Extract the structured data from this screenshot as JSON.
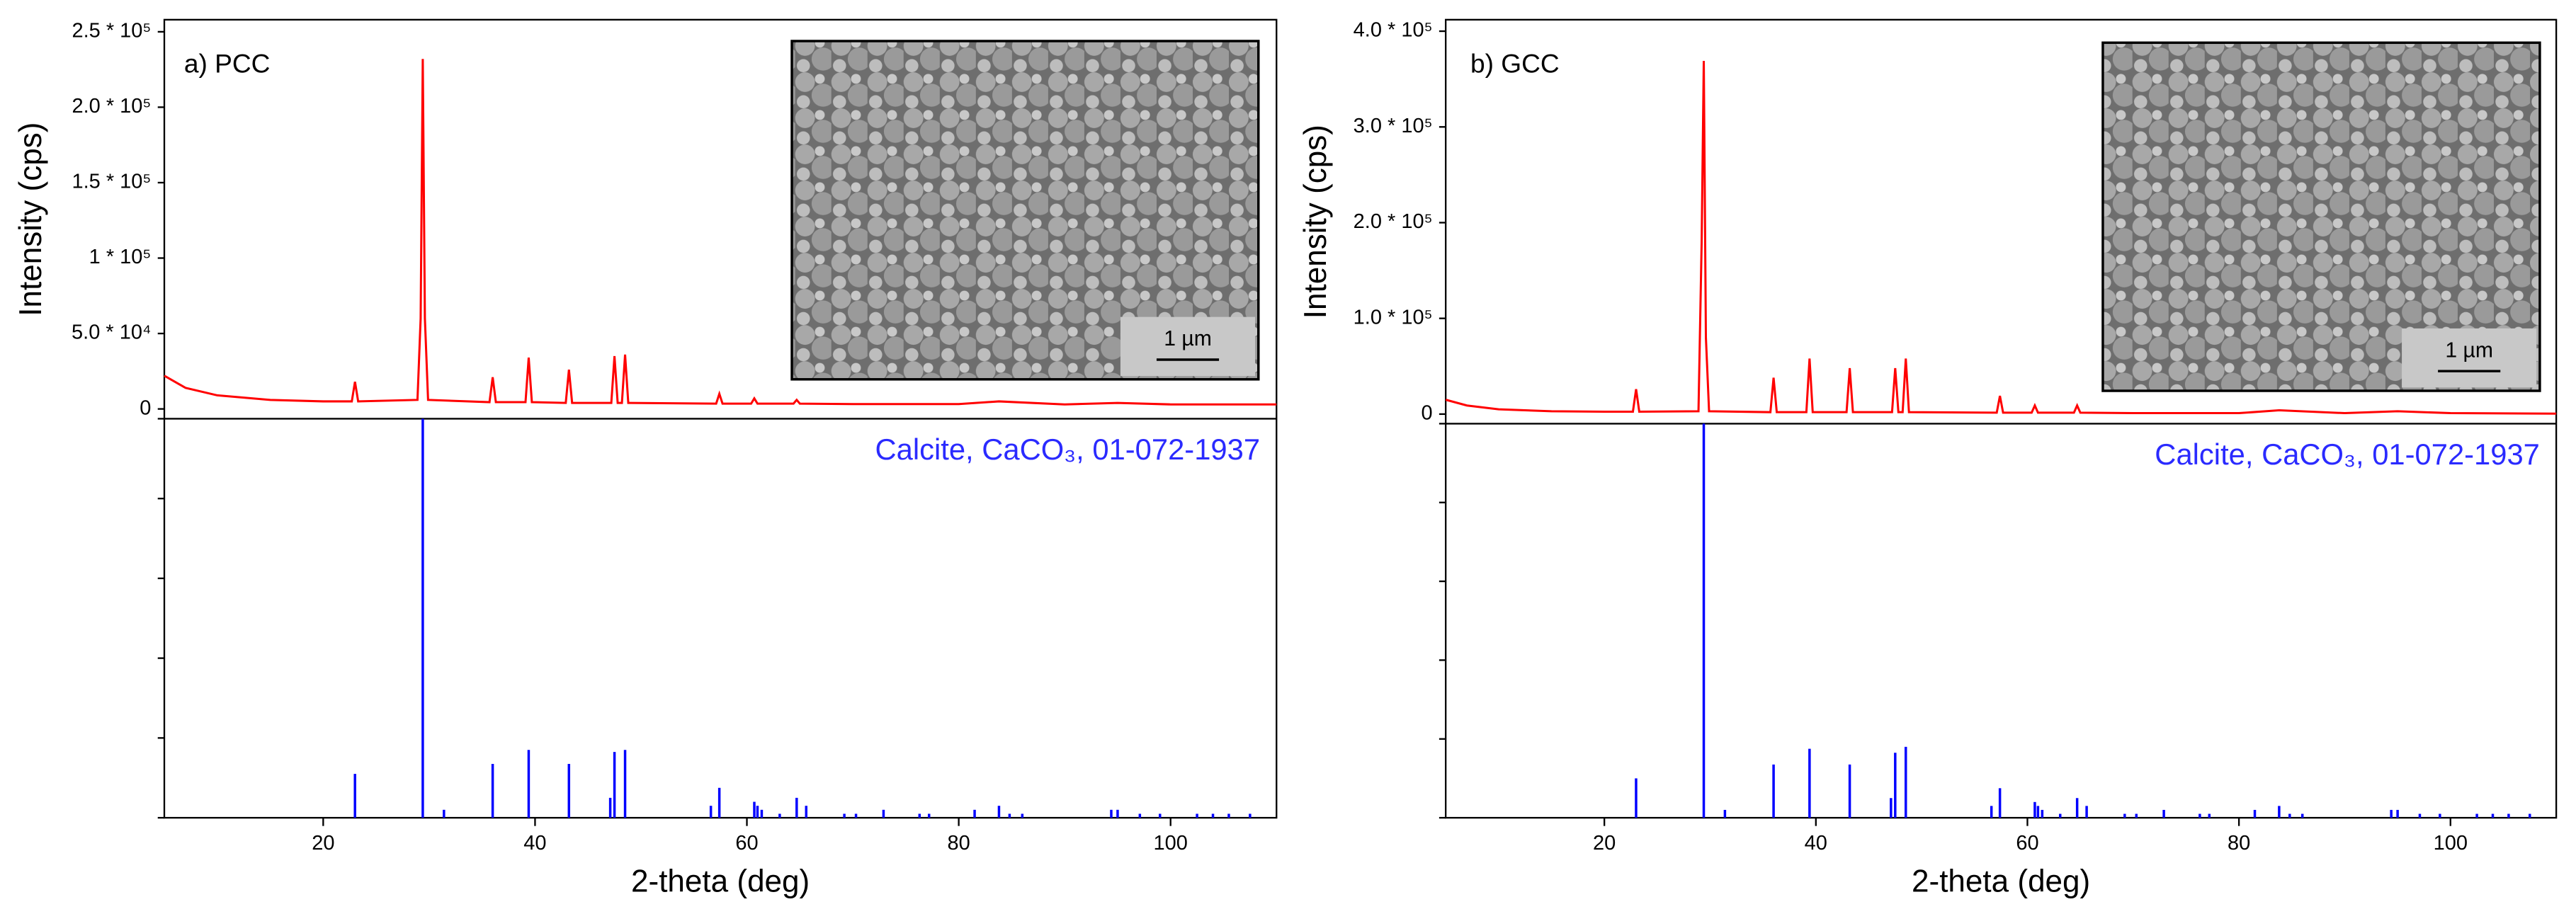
{
  "chart_data": [
    {
      "type": "xrd",
      "title": "a) PCC",
      "x_label": "2-theta (deg)",
      "y_label": "Intensity (cps)",
      "xlim": [
        5,
        110
      ],
      "xticks": [
        20,
        40,
        60,
        80,
        100
      ],
      "ylim": [
        -6500,
        258000
      ],
      "yticks": [
        0,
        {
          "value": 50000,
          "label": "5.0 * 10⁴"
        },
        {
          "value": 100000,
          "label": "1 * 10⁵"
        },
        {
          "value": 150000,
          "label": "1.5 * 10⁵"
        },
        {
          "value": 200000,
          "label": "2.0 * 10⁵"
        },
        {
          "value": 250000,
          "label": "2.5 * 10⁵"
        }
      ],
      "pattern": {
        "color": "#ff0000",
        "x": [
          5,
          7,
          10,
          15,
          20,
          22.7,
          23.0,
          23.3,
          28.9,
          29.2,
          29.4,
          29.6,
          29.9,
          35.7,
          36.0,
          36.3,
          39.1,
          39.4,
          39.7,
          42.9,
          43.2,
          43.5,
          47.2,
          47.5,
          47.8,
          48.2,
          48.5,
          48.8,
          57.1,
          57.4,
          57.7,
          60.4,
          60.7,
          61.0,
          64.4,
          64.7,
          65.0,
          70,
          80,
          83.8,
          90,
          95,
          100,
          110
        ],
        "values": [
          22000,
          14000,
          9000,
          6000,
          5000,
          5000,
          18000,
          5000,
          6000,
          60000,
          232000,
          60000,
          6000,
          4500,
          21000,
          4500,
          4500,
          34000,
          4500,
          4000,
          26000,
          4000,
          4000,
          35000,
          4000,
          4000,
          36000,
          4000,
          3500,
          10000,
          3500,
          3500,
          7000,
          3500,
          3500,
          6000,
          3500,
          3200,
          3200,
          5000,
          3000,
          4000,
          3000,
          3000
        ]
      },
      "reference": {
        "name": "Calcite, CaCO₃, 01-072-1937",
        "color": "#0000ff",
        "ylim": [
          0,
          100
        ],
        "yticks": [
          0,
          20,
          40,
          60,
          80,
          100
        ],
        "positions": [
          23.0,
          29.4,
          31.4,
          36.0,
          39.4,
          43.2,
          47.1,
          47.5,
          48.5,
          56.6,
          57.4,
          60.7,
          61.0,
          61.4,
          63.1,
          64.7,
          65.6,
          69.2,
          70.3,
          72.9,
          76.3,
          77.2,
          81.5,
          83.8,
          84.8,
          86.0,
          94.4,
          95.0,
          97.1,
          99.0,
          102.5,
          104.0,
          105.5,
          107.5
        ],
        "values": [
          11,
          100,
          2,
          13.5,
          17,
          13.5,
          5,
          16.5,
          17,
          3,
          7.5,
          4,
          3,
          2,
          1,
          5,
          3,
          1,
          1,
          2,
          1,
          1,
          2,
          3,
          1,
          1,
          2,
          2,
          1,
          1,
          1,
          1,
          1,
          1
        ]
      },
      "inset_scale_label": "1 µm"
    },
    {
      "type": "xrd",
      "title": "b) GCC",
      "x_label": "2-theta (deg)",
      "y_label": "Intensity (cps)",
      "xlim": [
        5,
        110
      ],
      "xticks": [
        20,
        40,
        60,
        80,
        100
      ],
      "ylim": [
        -10000,
        412000
      ],
      "yticks": [
        0,
        {
          "value": 100000,
          "label": "1.0 * 10⁵"
        },
        {
          "value": 200000,
          "label": "2.0 * 10⁵"
        },
        {
          "value": 300000,
          "label": "3.0 * 10⁵"
        },
        {
          "value": 400000,
          "label": "4.0 * 10⁵"
        }
      ],
      "pattern": {
        "color": "#ff0000",
        "x": [
          5,
          7,
          10,
          15,
          20,
          22.7,
          23.0,
          23.3,
          28.9,
          29.2,
          29.4,
          29.6,
          29.9,
          35.7,
          36.0,
          36.3,
          39.1,
          39.4,
          39.7,
          42.9,
          43.2,
          43.5,
          47.2,
          47.5,
          47.8,
          48.2,
          48.5,
          48.8,
          57.1,
          57.4,
          57.7,
          60.4,
          60.7,
          61.0,
          64.4,
          64.7,
          65.0,
          70,
          80,
          83.8,
          90,
          95,
          100,
          110
        ],
        "values": [
          15000,
          9000,
          5000,
          3000,
          2500,
          2500,
          26000,
          2500,
          3000,
          180000,
          369000,
          80000,
          3000,
          2000,
          38000,
          2000,
          2000,
          58000,
          2000,
          2000,
          48000,
          2000,
          2000,
          48000,
          2000,
          2000,
          58000,
          2000,
          1500,
          19000,
          1500,
          1500,
          9000,
          1500,
          1500,
          9000,
          1500,
          1000,
          1000,
          4000,
          1000,
          3000,
          1000,
          500
        ]
      },
      "reference": {
        "name": "Calcite, CaCO₃, 01-072-1937",
        "color": "#0000ff",
        "ylim": [
          0,
          100
        ],
        "yticks": [
          0,
          20,
          40,
          60,
          80,
          100
        ],
        "positions": [
          23.0,
          29.4,
          31.4,
          36.0,
          39.4,
          43.2,
          47.1,
          47.5,
          48.5,
          56.6,
          57.4,
          60.7,
          61.0,
          61.4,
          63.1,
          64.7,
          65.6,
          69.2,
          70.3,
          72.9,
          76.3,
          77.2,
          81.5,
          83.8,
          84.8,
          86.0,
          94.4,
          95.0,
          97.1,
          99.0,
          102.5,
          104.0,
          105.5,
          107.5
        ],
        "values": [
          10,
          100,
          2,
          13.5,
          17.5,
          13.5,
          5,
          16.5,
          18,
          3,
          7.5,
          4,
          3,
          2,
          1,
          5,
          3,
          1,
          1,
          2,
          1,
          1,
          2,
          3,
          1,
          1,
          2,
          2,
          1,
          1,
          1,
          1,
          1,
          1
        ]
      },
      "inset_scale_label": "1 µm"
    }
  ]
}
